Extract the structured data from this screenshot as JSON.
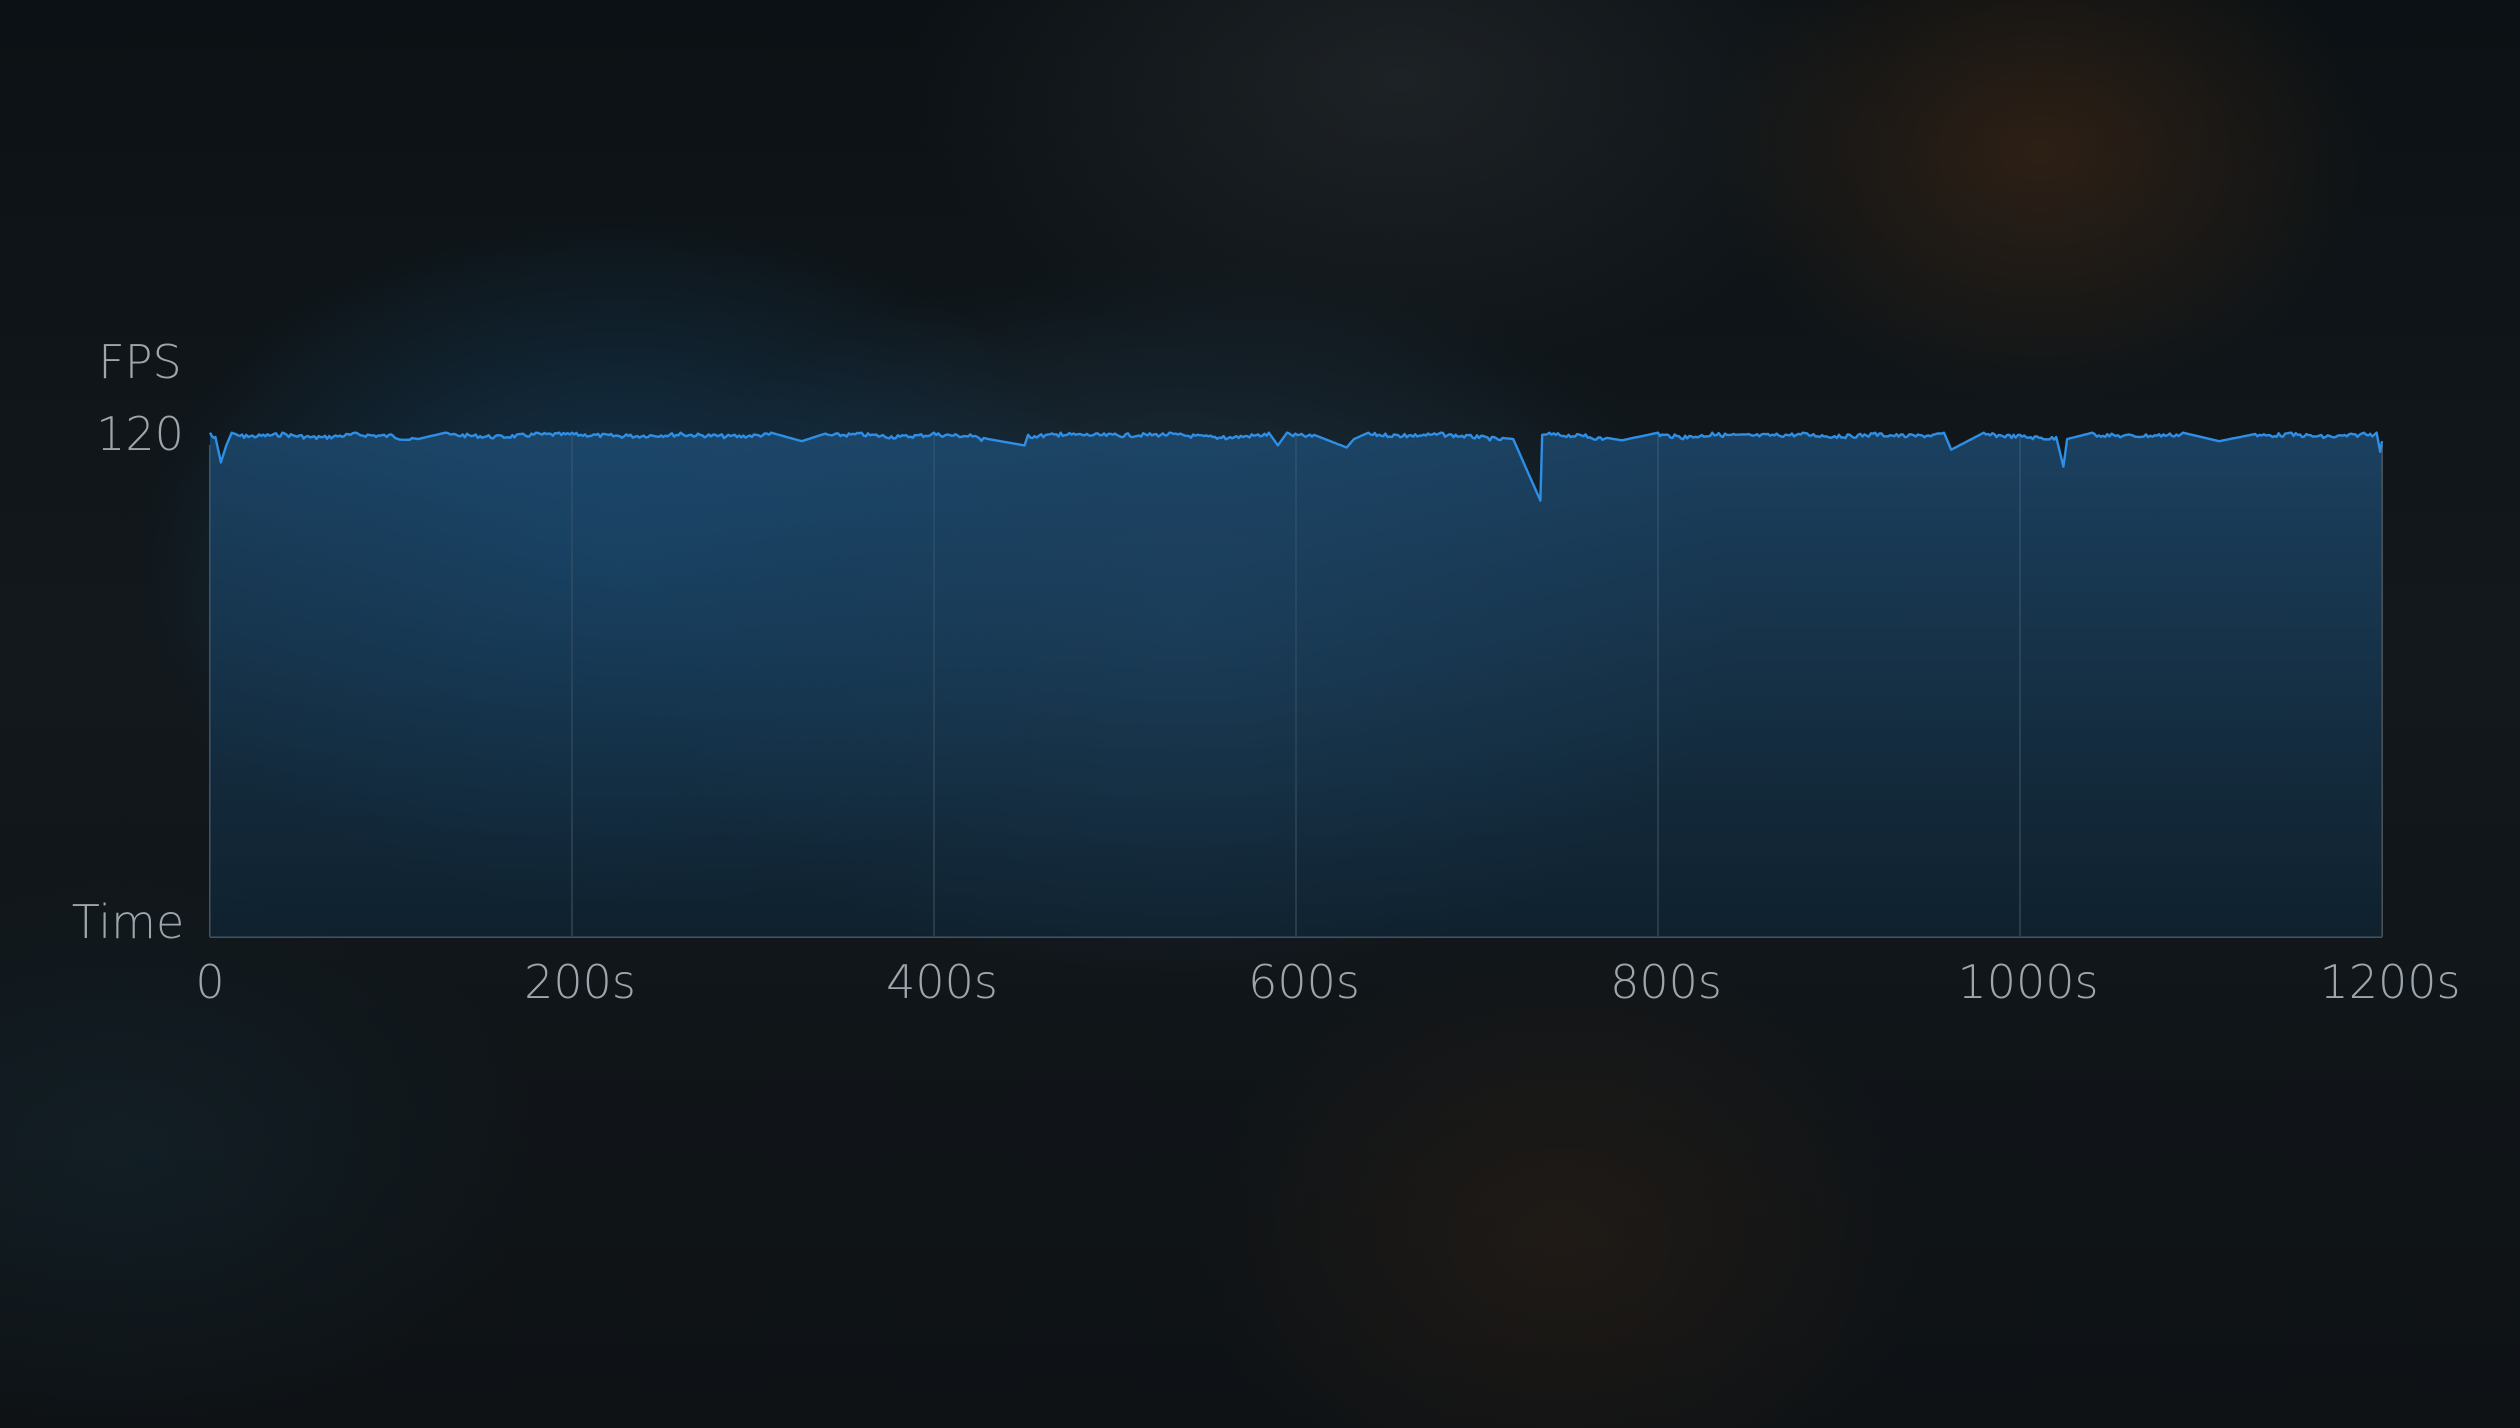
{
  "chart_data": {
    "type": "area",
    "title": "",
    "ylabel": "FPS",
    "xlabel": "Time",
    "y_tick_labels": [
      "120"
    ],
    "x_tick_labels": [
      "0",
      "200s",
      "400s",
      "600s",
      "800s",
      "1000s",
      "1200s"
    ],
    "xlim": [
      0,
      1200
    ],
    "ylim": [
      0,
      122
    ],
    "grid": "vertical",
    "colors": {
      "line": "#2f8fe6",
      "fill_top": "#1f4f78",
      "fill_bottom": "#0f2a3e",
      "grid": "#4a5157",
      "text": "#9ea6ad"
    },
    "series": [
      {
        "values_x": [
          0,
          3,
          6,
          9,
          12,
          20,
          40,
          60,
          80,
          100,
          115,
          130,
          160,
          180,
          200,
          230,
          260,
          290,
          310,
          327,
          340,
          360,
          380,
          400,
          420,
          430,
          450,
          452,
          470,
          500,
          530,
          560,
          585,
          590,
          595,
          610,
          628,
          632,
          640,
          660,
          680,
          700,
          720,
          735,
          736,
          740,
          760,
          780,
          800,
          815,
          830,
          850,
          880,
          900,
          920,
          940,
          958,
          962,
          980,
          1000,
          1020,
          1024,
          1026,
          1040,
          1060,
          1090,
          1110,
          1130,
          1150,
          1170,
          1190,
          1197,
          1199,
          1200
        ],
        "values_y": [
          119,
          118,
          112,
          116,
          119,
          118.5,
          119,
          118.2,
          119,
          118.6,
          117.5,
          119,
          118.4,
          119,
          119,
          118.6,
          119,
          118.5,
          119,
          117,
          118.8,
          119,
          118.4,
          119,
          118.6,
          117.5,
          116,
          118.5,
          119,
          118.8,
          119,
          118.2,
          119,
          116,
          119,
          118.5,
          115.5,
          117.5,
          119,
          118.7,
          119,
          118.4,
          117.5,
          103,
          118.5,
          119,
          118.6,
          117.2,
          119,
          118.3,
          119,
          118.7,
          119,
          118.5,
          119,
          118.6,
          119,
          115,
          119,
          118.5,
          118,
          111,
          117.5,
          119,
          118.6,
          119,
          117,
          118.7,
          119,
          118.4,
          119,
          119,
          114.5,
          117
        ]
      }
    ]
  }
}
